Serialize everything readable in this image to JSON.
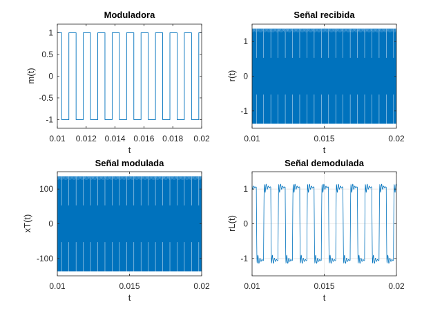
{
  "colors": {
    "series": "#0072BD",
    "axis": "#262626",
    "grid": "#E6E6E6",
    "background": "#FFFFFF"
  },
  "chart_data": [
    {
      "type": "line",
      "title": "Moduladora",
      "xlabel": "t",
      "ylabel": "m(t)",
      "xlim": [
        0.01,
        0.02
      ],
      "ylim": [
        -1.2,
        1.2
      ],
      "xticks": [
        0.01,
        0.012,
        0.014,
        0.016,
        0.018,
        0.02
      ],
      "xticklabels": [
        "0.01",
        "0.012",
        "0.014",
        "0.016",
        "0.018",
        "0.02"
      ],
      "yticks": [
        -1,
        -0.5,
        0,
        0.5,
        1
      ],
      "yticklabels": [
        "-1",
        "-0.5",
        "0",
        "0.5",
        "1"
      ],
      "grid": false,
      "series": [
        {
          "signal": "square",
          "amplitude": 1,
          "period": 0.001,
          "phase": 0.0008
        }
      ]
    },
    {
      "type": "line",
      "title": "Señal recibida",
      "xlabel": "t",
      "ylabel": "r(t)",
      "xlim": [
        0.01,
        0.02
      ],
      "ylim": [
        -1.5,
        1.5
      ],
      "xticks": [
        0.01,
        0.015,
        0.02
      ],
      "xticklabels": [
        "0.01",
        "0.015",
        "0.02"
      ],
      "yticks": [
        -1,
        0,
        1
      ],
      "yticklabels": [
        "-1",
        "0",
        "1"
      ],
      "grid": true,
      "series": [
        {
          "signal": "modulated-carrier",
          "amplitude": 1.37,
          "period": 0.001
        }
      ]
    },
    {
      "type": "line",
      "title": "Señal modulada",
      "xlabel": "t",
      "ylabel": "xT(t)",
      "xlim": [
        0.01,
        0.02
      ],
      "ylim": [
        -150,
        150
      ],
      "xticks": [
        0.01,
        0.015,
        0.02
      ],
      "xticklabels": [
        "0.01",
        "0.015",
        "0.02"
      ],
      "yticks": [
        -100,
        0,
        100
      ],
      "yticklabels": [
        "-100",
        "0",
        "100"
      ],
      "grid": true,
      "series": [
        {
          "signal": "modulated-carrier",
          "amplitude": 137,
          "period": 0.001
        }
      ]
    },
    {
      "type": "line",
      "title": "Señal demodulada",
      "xlabel": "t",
      "ylabel": "rL(t)",
      "xlim": [
        0.01,
        0.02
      ],
      "ylim": [
        -1.5,
        1.5
      ],
      "xticks": [
        0.01,
        0.015,
        0.02
      ],
      "xticklabels": [
        "0.01",
        "0.015",
        "0.02"
      ],
      "yticks": [
        -1,
        0,
        1
      ],
      "yticklabels": [
        "-1",
        "0",
        "1"
      ],
      "grid": true,
      "series": [
        {
          "signal": "filtered-square",
          "amplitude": 1.05,
          "peak": 1.3,
          "period": 0.001
        }
      ]
    }
  ]
}
